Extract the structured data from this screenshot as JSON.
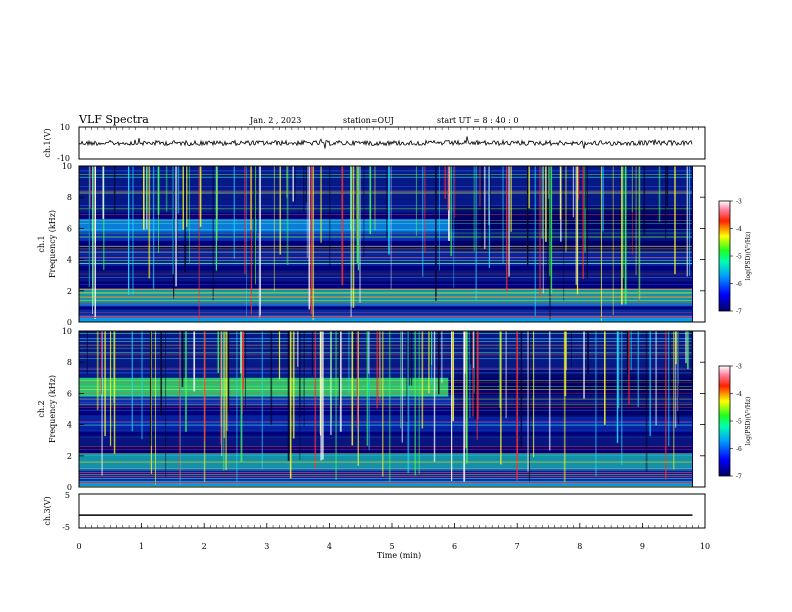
{
  "header": {
    "title": "VLF Spectra",
    "date": "Jan. 2 , 2023",
    "station": "station=OUJ",
    "start": "start UT = 8 : 40 : 0"
  },
  "chart_data": [
    {
      "type": "line",
      "ylabel": "ch.1(V)",
      "ylim": [
        -10,
        10
      ],
      "ytick_labels": [
        "10",
        "-10"
      ],
      "description_values": {
        "baseline": 0,
        "noise_amplitude": 1.5
      }
    },
    {
      "type": "heatmap",
      "ylabel_line1": "ch.1",
      "ylabel_line2": "Frequency (kHz)",
      "ylim": [
        0,
        10
      ],
      "yticks": [
        0,
        2,
        4,
        6,
        8,
        10
      ],
      "colorbar": {
        "label": "log(PSD)(V²/Hz)",
        "range": [
          -7,
          -3
        ],
        "ticks": [
          "-3",
          "-4",
          "-5",
          "-6",
          "-7"
        ]
      }
    },
    {
      "type": "heatmap",
      "ylabel_line1": "ch.2",
      "ylabel_line2": "Frequency (kHz)",
      "ylim": [
        0,
        10
      ],
      "yticks": [
        0,
        2,
        4,
        6,
        8,
        10
      ],
      "colorbar": {
        "label": "log(PSD)(V²/Hz)",
        "range": [
          -7,
          -3
        ],
        "ticks": [
          "-3",
          "-4",
          "-5",
          "-6",
          "-7"
        ]
      }
    },
    {
      "type": "line",
      "ylabel": "ch.3(V)",
      "ylim": [
        -5,
        5
      ],
      "ytick_labels": [
        "5",
        "-5"
      ],
      "x": [
        0,
        9.8
      ],
      "y": [
        -1.2,
        -1.2
      ]
    }
  ],
  "xaxis": {
    "label": "Time (min)",
    "range": [
      0,
      10
    ],
    "ticks": [
      "0",
      "1",
      "2",
      "3",
      "4",
      "5",
      "6",
      "7",
      "8",
      "9",
      "10"
    ]
  }
}
